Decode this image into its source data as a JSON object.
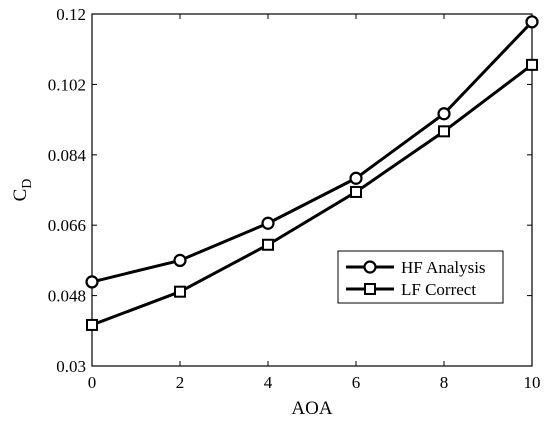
{
  "chart_data": {
    "type": "line",
    "title": "",
    "xlabel": "AOA",
    "ylabel": "C",
    "ylabel_subscript": "D",
    "xlim": [
      0,
      10
    ],
    "ylim": [
      0.03,
      0.12
    ],
    "x": [
      0,
      2,
      4,
      6,
      8,
      10
    ],
    "x_ticks": [
      0,
      2,
      4,
      6,
      8,
      10
    ],
    "x_tick_labels": [
      "0",
      "2",
      "4",
      "6",
      "8",
      "10"
    ],
    "y_ticks": [
      0.03,
      0.048,
      0.066,
      0.084,
      0.102,
      0.12
    ],
    "y_tick_labels": [
      "0.03",
      "0.048",
      "0.066",
      "0.084",
      "0.102",
      "0.12"
    ],
    "grid": false,
    "legend_position": "lower-right",
    "series": [
      {
        "name": "HF Analysis",
        "marker": "circle",
        "color": "#000000",
        "values": [
          0.0515,
          0.057,
          0.0665,
          0.078,
          0.0945,
          0.118
        ]
      },
      {
        "name": "LF Correct",
        "marker": "square",
        "color": "#000000",
        "values": [
          0.0405,
          0.049,
          0.061,
          0.0745,
          0.09,
          0.107
        ]
      }
    ]
  }
}
